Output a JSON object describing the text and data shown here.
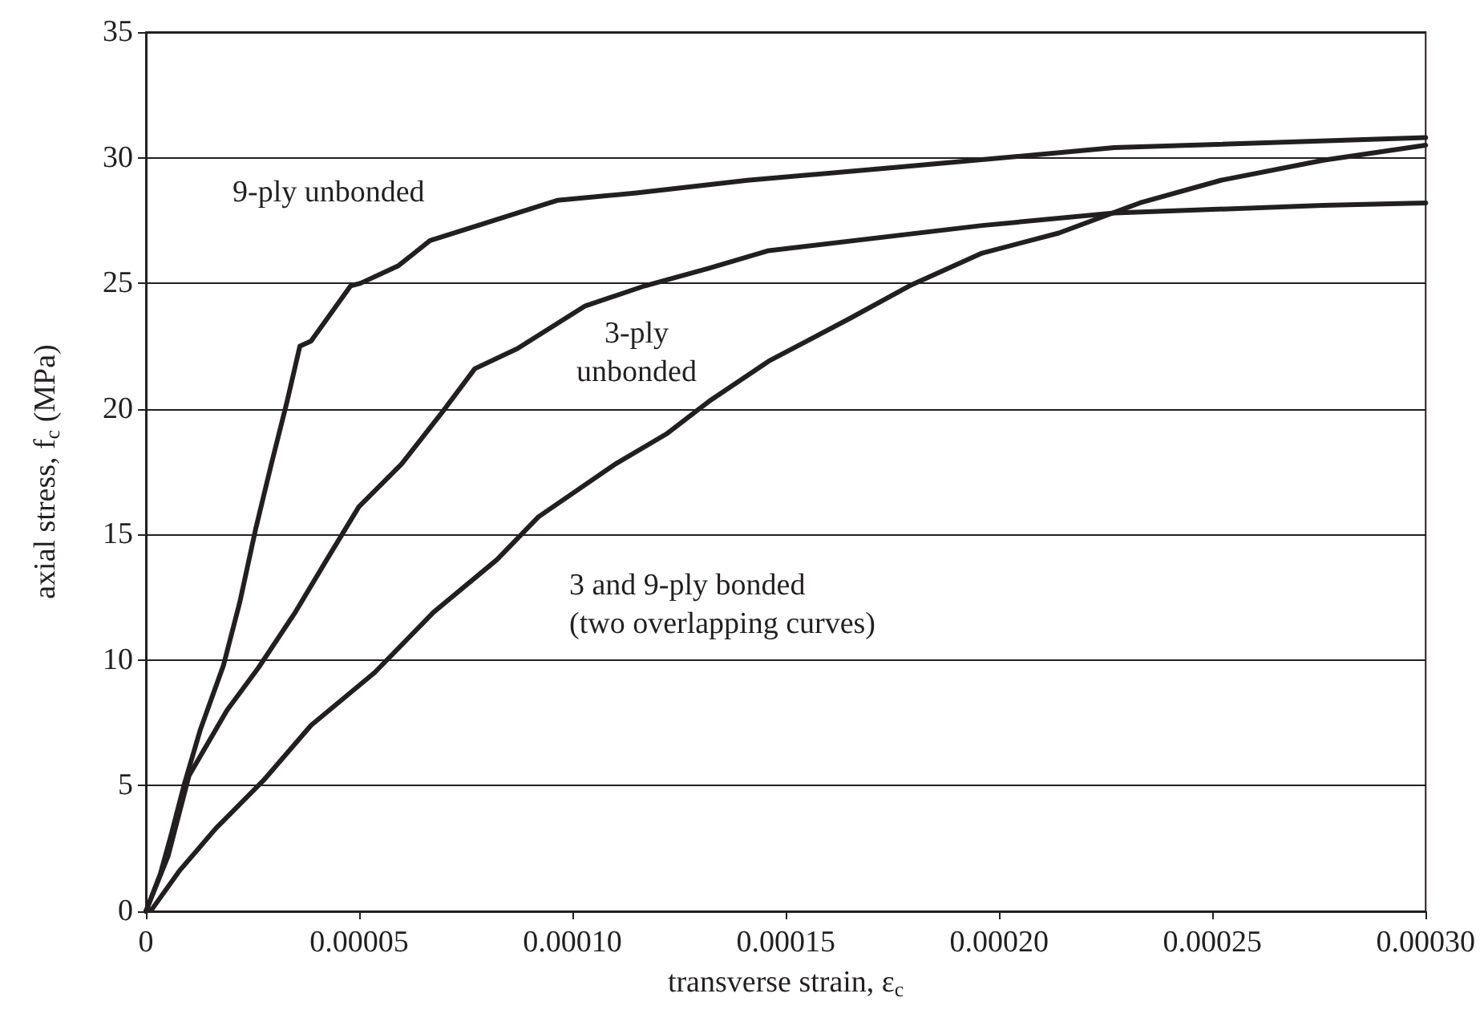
{
  "chart_data": {
    "type": "line",
    "xlabel": "transverse strain, ε$_{c}$",
    "ylabel": "axial stress, f$_{c}$ (MPa)",
    "xlim": [
      0,
      0.0003
    ],
    "xticks": [
      0,
      {
        "value": 5e-05,
        "label": "0.00005"
      },
      {
        "value": 0.0001,
        "label": "0.00010"
      },
      0.00015,
      {
        "value": 0.0002,
        "label": "0.00020"
      },
      0.00025,
      {
        "value": 0.0003,
        "label": "0.00030"
      }
    ],
    "ylim": [
      0,
      35
    ],
    "yticks": [
      0,
      5,
      10,
      15,
      20,
      25,
      30,
      35
    ],
    "grid": "y",
    "marker": "none",
    "line_style": "solid",
    "series": [
      {
        "color": "#231f20",
        "x": [
          0,
          3.4e-06,
          6e-06,
          8.9e-06,
          1.27e-05,
          1.82e-05,
          2.2e-05,
          2.57e-05,
          2.94e-05,
          3.31e-05,
          3.61e-05,
          3.87e-05,
          4.8e-05,
          5.03e-05,
          5.92e-05,
          6.66e-05,
          7.78e-05,
          9.64e-05,
          0.000115,
          0.000141,
          0.000175,
          0.000227,
          0.0003
        ],
        "values": [
          0,
          1.5,
          3.1,
          5,
          7.2,
          9.8,
          12.3,
          15.2,
          17.8,
          20.3,
          22.5,
          22.7,
          24.9,
          25,
          25.7,
          26.7,
          27.3,
          28.3,
          28.6,
          29.1,
          29.6,
          30.4,
          30.8
        ]
      },
      {
        "color": "#231f20",
        "x": [
          0,
          5.2e-06,
          1.01e-05,
          1.9e-05,
          2.64e-05,
          3.5e-05,
          4.24e-05,
          4.99e-05,
          5.99e-05,
          6.96e-05,
          7.71e-05,
          8.71e-05,
          0.000103,
          0.000117,
          0.000132,
          0.000146,
          0.000196,
          0.000227,
          0.000276,
          0.0003
        ],
        "values": [
          0,
          2.2,
          5.4,
          8,
          9.7,
          11.9,
          14,
          16.1,
          17.8,
          19.9,
          21.6,
          22.4,
          24.1,
          24.9,
          25.6,
          26.3,
          27.3,
          27.8,
          28.1,
          28.2
        ]
      },
      {
        "color": "#231f20",
        "x": [
          0,
          1.5e-06,
          7.8e-06,
          1.64e-05,
          2.75e-05,
          3.87e-05,
          5.36e-05,
          6.74e-05,
          8.23e-05,
          9.2e-05,
          0.00011,
          0.000122,
          0.000132,
          0.000146,
          0.000165,
          0.000179,
          0.000196,
          0.000214,
          0.000233,
          0.000252,
          0.000276,
          0.0003
        ],
        "values": [
          0,
          0.1,
          1.6,
          3.3,
          5.2,
          7.4,
          9.5,
          11.9,
          14,
          15.7,
          17.8,
          19,
          20.3,
          21.9,
          23.6,
          24.9,
          26.2,
          27,
          28.2,
          29.1,
          29.9,
          30.5
        ]
      }
    ],
    "annotations": [
      "9-ply unbonded",
      "3-ply\nunbonded",
      "3 and 9-ply bonded\n(two overlapping curves)"
    ]
  }
}
